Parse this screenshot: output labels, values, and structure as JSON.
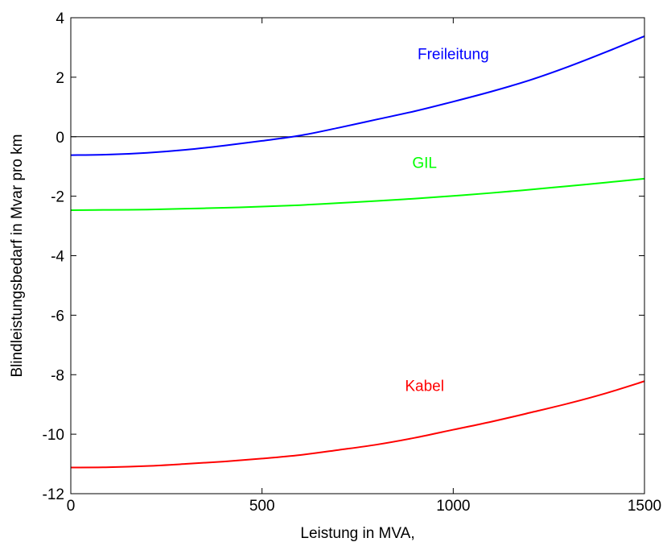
{
  "chart_data": {
    "type": "line",
    "xlabel": "Leistung in MVA,",
    "ylabel": "Blindleistungsbedarf in Mvar pro km",
    "xlim": [
      0,
      1500
    ],
    "ylim": [
      -12,
      4
    ],
    "xticks": [
      0,
      500,
      1000,
      1500
    ],
    "yticks": [
      -12,
      -10,
      -8,
      -6,
      -4,
      -2,
      0,
      2,
      4
    ],
    "xtick_labels": [
      "0",
      "500",
      "1000",
      "1500"
    ],
    "ytick_labels": [
      "-12",
      "-10",
      "-8",
      "-6",
      "-4",
      "-2",
      "0",
      "2",
      "4"
    ],
    "grid": false,
    "reference_line": {
      "y": 0,
      "color": "#000000"
    },
    "series": [
      {
        "name": "Freileitung",
        "color": "#0000ff",
        "x": [
          0,
          100,
          200,
          300,
          400,
          500,
          600,
          700,
          800,
          900,
          1000,
          1100,
          1200,
          1300,
          1400,
          1500
        ],
        "y": [
          -0.62,
          -0.6,
          -0.54,
          -0.44,
          -0.3,
          -0.14,
          0.04,
          0.3,
          0.58,
          0.86,
          1.18,
          1.52,
          1.9,
          2.35,
          2.85,
          3.38
        ],
        "label_at": [
          1000,
          2.6
        ]
      },
      {
        "name": "GIL",
        "color": "#00ff00",
        "x": [
          0,
          100,
          200,
          300,
          400,
          500,
          600,
          700,
          800,
          900,
          1000,
          1100,
          1200,
          1300,
          1400,
          1500
        ],
        "y": [
          -2.47,
          -2.46,
          -2.45,
          -2.42,
          -2.39,
          -2.35,
          -2.3,
          -2.23,
          -2.16,
          -2.08,
          -1.99,
          -1.89,
          -1.78,
          -1.66,
          -1.54,
          -1.41
        ],
        "label_at": [
          925,
          -1.05
        ]
      },
      {
        "name": "Kabel",
        "color": "#ff0000",
        "x": [
          0,
          100,
          200,
          300,
          400,
          500,
          600,
          700,
          800,
          900,
          1000,
          1100,
          1200,
          1300,
          1400,
          1500
        ],
        "y": [
          -11.12,
          -11.11,
          -11.07,
          -11.0,
          -10.92,
          -10.82,
          -10.7,
          -10.53,
          -10.35,
          -10.12,
          -9.85,
          -9.58,
          -9.28,
          -8.97,
          -8.62,
          -8.22
        ],
        "label_at": [
          925,
          -8.55
        ]
      }
    ]
  }
}
